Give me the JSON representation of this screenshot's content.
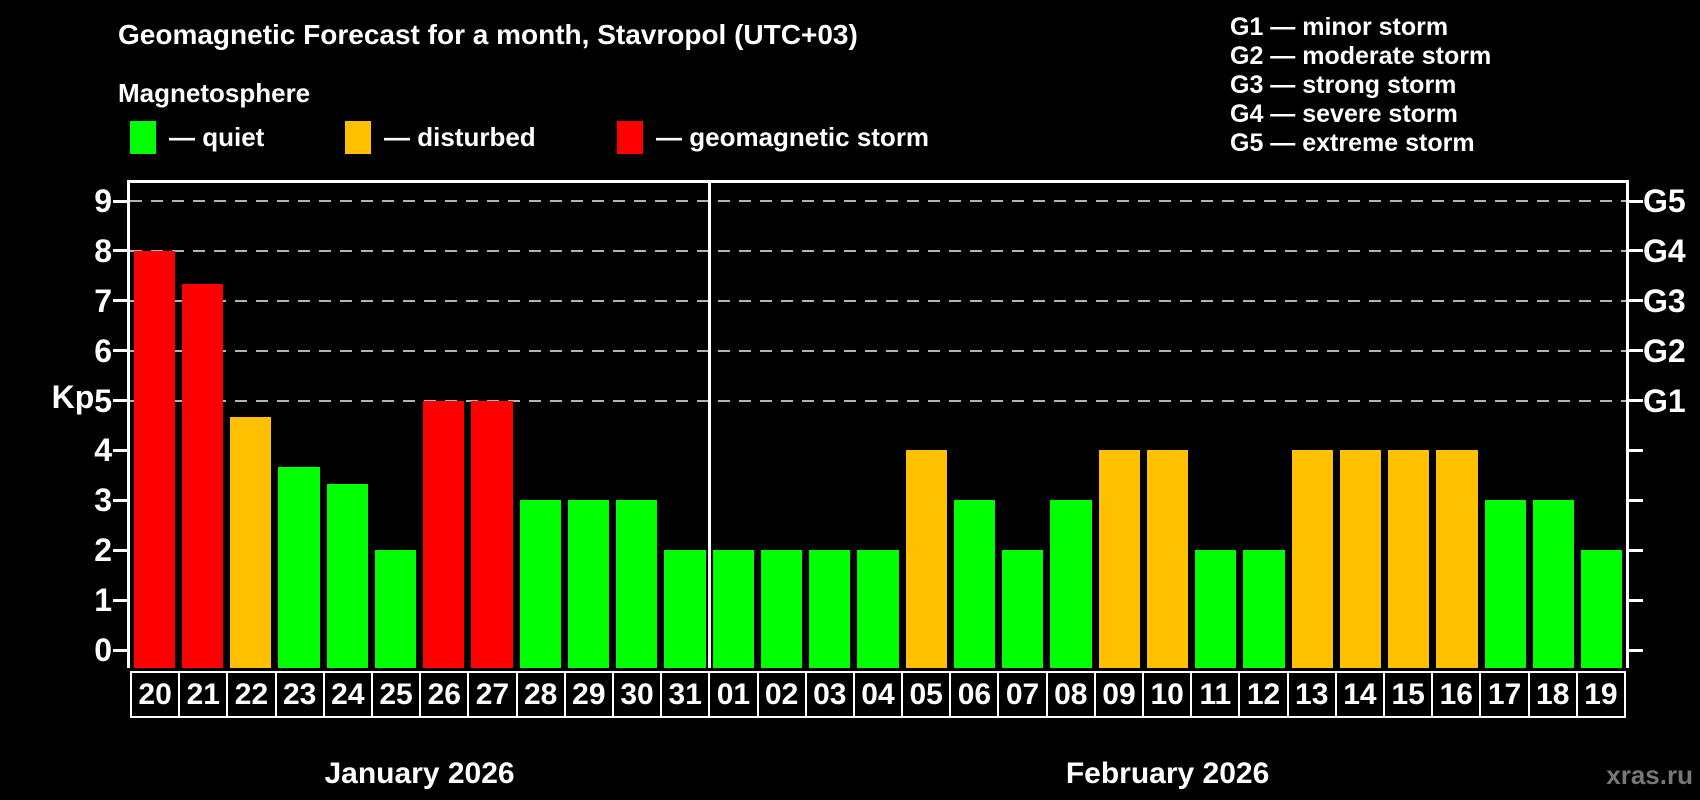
{
  "header": {
    "title": "Geomagnetic Forecast for a month, Stavropol (UTC+03)",
    "subtitle": "Magnetosphere"
  },
  "legend": {
    "items": [
      {
        "key": "quiet",
        "label": "— quiet",
        "color": "#00ff00"
      },
      {
        "key": "disturbed",
        "label": "— disturbed",
        "color": "#ffc000"
      },
      {
        "key": "storm",
        "label": "— geomagnetic storm",
        "color": "#ff0000"
      }
    ]
  },
  "g_legend": {
    "items": [
      "G1 — minor storm",
      "G2 — moderate storm",
      "G3 — strong storm",
      "G4 — severe storm",
      "G5 — extreme storm"
    ]
  },
  "axes": {
    "kp_label": "Kp",
    "left_ticks": [
      0,
      1,
      2,
      3,
      4,
      5,
      6,
      7,
      8,
      9
    ],
    "right_labels": [
      {
        "value": 5,
        "label": "G1"
      },
      {
        "value": 6,
        "label": "G2"
      },
      {
        "value": 7,
        "label": "G3"
      },
      {
        "value": 8,
        "label": "G4"
      },
      {
        "value": 9,
        "label": "G5"
      }
    ]
  },
  "chart_data": {
    "type": "bar",
    "title": "Geomagnetic Forecast for a month, Stavropol (UTC+03)",
    "xlabel": "",
    "ylabel": "Kp",
    "ylim": [
      0,
      9
    ],
    "gridlines": [
      5,
      6,
      7,
      8,
      9
    ],
    "categories": [
      "20",
      "21",
      "22",
      "23",
      "24",
      "25",
      "26",
      "27",
      "28",
      "29",
      "30",
      "31",
      "01",
      "02",
      "03",
      "04",
      "05",
      "06",
      "07",
      "08",
      "09",
      "10",
      "11",
      "12",
      "13",
      "14",
      "15",
      "16",
      "17",
      "18",
      "19"
    ],
    "values": [
      8,
      7.33,
      4.67,
      3.67,
      3.33,
      2,
      5,
      5,
      3,
      3,
      3,
      2,
      2,
      2,
      2,
      2,
      4,
      3,
      2,
      3,
      4,
      4,
      2,
      2,
      4,
      4,
      4,
      4,
      3,
      3,
      2
    ],
    "statuses": [
      "storm",
      "storm",
      "disturbed",
      "quiet",
      "quiet",
      "quiet",
      "storm",
      "storm",
      "quiet",
      "quiet",
      "quiet",
      "quiet",
      "quiet",
      "quiet",
      "quiet",
      "quiet",
      "disturbed",
      "quiet",
      "quiet",
      "quiet",
      "disturbed",
      "disturbed",
      "quiet",
      "quiet",
      "disturbed",
      "disturbed",
      "disturbed",
      "disturbed",
      "quiet",
      "quiet",
      "quiet"
    ],
    "colors": {
      "quiet": "#00ff00",
      "disturbed": "#ffc000",
      "storm": "#ff0000"
    },
    "months": [
      {
        "label": "January 2026",
        "days": 12
      },
      {
        "label": "February 2026",
        "days": 19
      }
    ]
  },
  "watermark": "xras.ru"
}
